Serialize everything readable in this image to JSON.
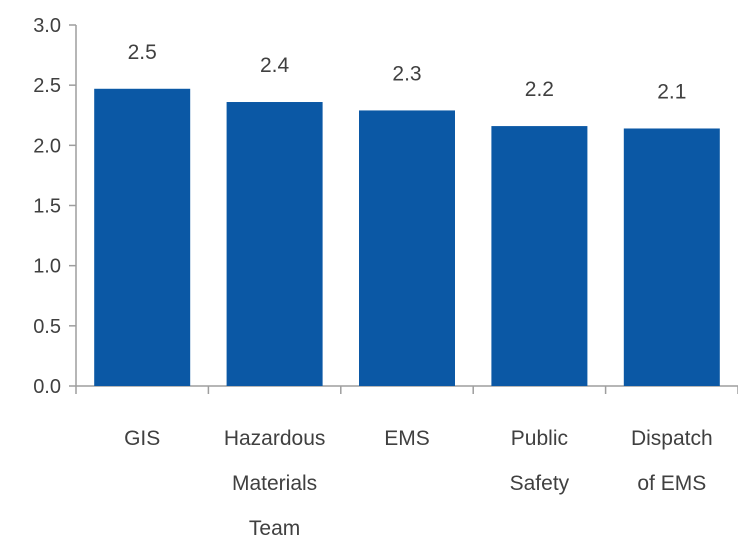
{
  "chart_data": {
    "type": "bar",
    "categories": [
      [
        "GIS"
      ],
      [
        "Hazardous",
        "Materials",
        "Team"
      ],
      [
        "EMS"
      ],
      [
        "Public",
        "Safety"
      ],
      [
        "Dispatch",
        "of EMS"
      ]
    ],
    "values": [
      2.47,
      2.36,
      2.29,
      2.16,
      2.14
    ],
    "data_labels": [
      "2.5",
      "2.4",
      "2.3",
      "2.2",
      "2.1"
    ],
    "y_ticks": [
      "0.0",
      "0.5",
      "1.0",
      "1.5",
      "2.0",
      "2.5",
      "3.0"
    ],
    "ylim": [
      0,
      3.0
    ],
    "grid": false,
    "legend": "none",
    "bar_color": "#0B58A5",
    "axis_color": "#9E9E9E",
    "text_color": "#404040"
  }
}
